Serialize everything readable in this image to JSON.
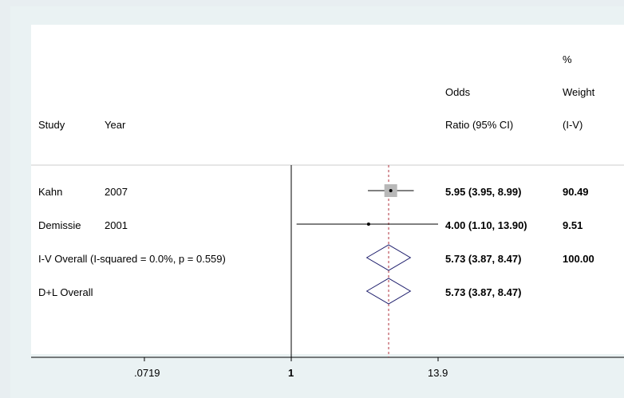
{
  "chart_data": {
    "type": "forest",
    "x_scale": "log",
    "null_line": 1,
    "overall_line": 5.73,
    "axis_ticks": [
      {
        "value": 0.0719,
        "label": ".0719"
      },
      {
        "value": 1,
        "label": "1"
      },
      {
        "value": 13.9,
        "label": "13.9"
      }
    ],
    "headers": {
      "study": "Study",
      "year": "Year",
      "or_line1": "Odds",
      "or_line2": "Ratio (95% CI)",
      "weight_line0": "%",
      "weight_line1": "Weight",
      "weight_line2": "(I-V)"
    },
    "studies": [
      {
        "study": "Kahn",
        "year": "2007",
        "or": 5.95,
        "ci_low": 3.95,
        "ci_high": 8.99,
        "or_text": "5.95 (3.95, 8.99)",
        "weight": 90.49,
        "weight_text": "90.49"
      },
      {
        "study": "Demissie",
        "year": "2001",
        "or": 4.0,
        "ci_low": 1.1,
        "ci_high": 13.9,
        "or_text": "4.00 (1.10, 13.90)",
        "weight": 9.51,
        "weight_text": "9.51"
      }
    ],
    "overall": [
      {
        "label": "I-V Overall  (I-squared = 0.0%, p = 0.559)",
        "or": 5.73,
        "ci_low": 3.87,
        "ci_high": 8.47,
        "or_text": "5.73 (3.87, 8.47)",
        "weight_text": "100.00"
      },
      {
        "label": "D+L Overall",
        "or": 5.73,
        "ci_low": 3.87,
        "ci_high": 8.47,
        "or_text": "5.73 (3.87, 8.47)",
        "weight_text": ""
      }
    ],
    "colors": {
      "diamond": "#1c1c6b",
      "overall_line": "#b0303a",
      "weight_box": "#b8b8b8",
      "line": "#000000"
    }
  }
}
